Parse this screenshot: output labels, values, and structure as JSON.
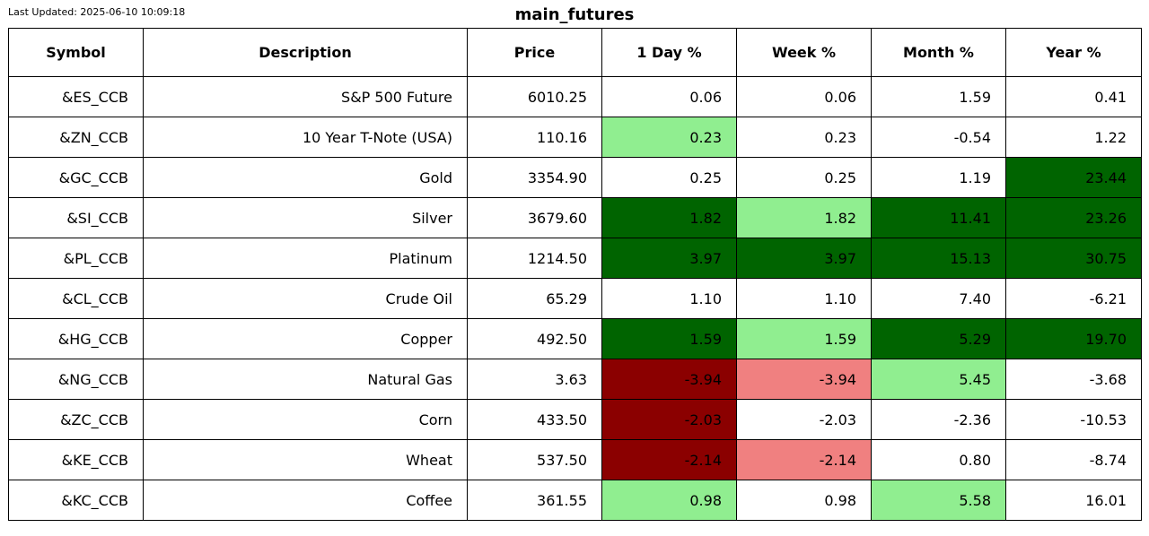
{
  "last_updated": "Last Updated: 2025-06-10 10:09:18",
  "title": "main_futures",
  "colors": {
    "strong_pos": "#006400",
    "weak_pos": "#90ee90",
    "strong_neg": "#8b0000",
    "weak_neg": "#f08080",
    "neutral": "#ffffff"
  },
  "chart_data": {
    "type": "table",
    "title": "main_futures",
    "columns": [
      "Symbol",
      "Description",
      "Price",
      "1 Day %",
      "Week %",
      "Month %",
      "Year %"
    ],
    "rows": [
      [
        "&ES_CCB",
        "S&P 500 Future",
        "6010.25",
        "0.06",
        "0.06",
        "1.59",
        "0.41"
      ],
      [
        "&ZN_CCB",
        "10 Year T-Note (USA)",
        "110.16",
        "0.23",
        "0.23",
        "-0.54",
        "1.22"
      ],
      [
        "&GC_CCB",
        "Gold",
        "3354.90",
        "0.25",
        "0.25",
        "1.19",
        "23.44"
      ],
      [
        "&SI_CCB",
        "Silver",
        "3679.60",
        "1.82",
        "1.82",
        "11.41",
        "23.26"
      ],
      [
        "&PL_CCB",
        "Platinum",
        "1214.50",
        "3.97",
        "3.97",
        "15.13",
        "30.75"
      ],
      [
        "&CL_CCB",
        "Crude Oil",
        "65.29",
        "1.10",
        "1.10",
        "7.40",
        "-6.21"
      ],
      [
        "&HG_CCB",
        "Copper",
        "492.50",
        "1.59",
        "1.59",
        "5.29",
        "19.70"
      ],
      [
        "&NG_CCB",
        "Natural Gas",
        "3.63",
        "-3.94",
        "-3.94",
        "5.45",
        "-3.68"
      ],
      [
        "&ZC_CCB",
        "Corn",
        "433.50",
        "-2.03",
        "-2.03",
        "-2.36",
        "-10.53"
      ],
      [
        "&KE_CCB",
        "Wheat",
        "537.50",
        "-2.14",
        "-2.14",
        "0.80",
        "-8.74"
      ],
      [
        "&KC_CCB",
        "Coffee",
        "361.55",
        "0.98",
        "0.98",
        "5.58",
        "16.01"
      ]
    ],
    "cell_colors": [
      [
        "neutral",
        "neutral",
        "neutral",
        "neutral",
        "neutral",
        "neutral",
        "neutral"
      ],
      [
        "neutral",
        "neutral",
        "neutral",
        "weak_pos",
        "neutral",
        "neutral",
        "neutral"
      ],
      [
        "neutral",
        "neutral",
        "neutral",
        "neutral",
        "neutral",
        "neutral",
        "strong_pos"
      ],
      [
        "neutral",
        "neutral",
        "neutral",
        "strong_pos",
        "weak_pos",
        "strong_pos",
        "strong_pos"
      ],
      [
        "neutral",
        "neutral",
        "neutral",
        "strong_pos",
        "strong_pos",
        "strong_pos",
        "strong_pos"
      ],
      [
        "neutral",
        "neutral",
        "neutral",
        "neutral",
        "neutral",
        "neutral",
        "neutral"
      ],
      [
        "neutral",
        "neutral",
        "neutral",
        "strong_pos",
        "weak_pos",
        "strong_pos",
        "strong_pos"
      ],
      [
        "neutral",
        "neutral",
        "neutral",
        "strong_neg",
        "weak_neg",
        "weak_pos",
        "neutral"
      ],
      [
        "neutral",
        "neutral",
        "neutral",
        "strong_neg",
        "neutral",
        "neutral",
        "neutral"
      ],
      [
        "neutral",
        "neutral",
        "neutral",
        "strong_neg",
        "weak_neg",
        "neutral",
        "neutral"
      ],
      [
        "neutral",
        "neutral",
        "neutral",
        "weak_pos",
        "neutral",
        "weak_pos",
        "neutral"
      ]
    ]
  }
}
